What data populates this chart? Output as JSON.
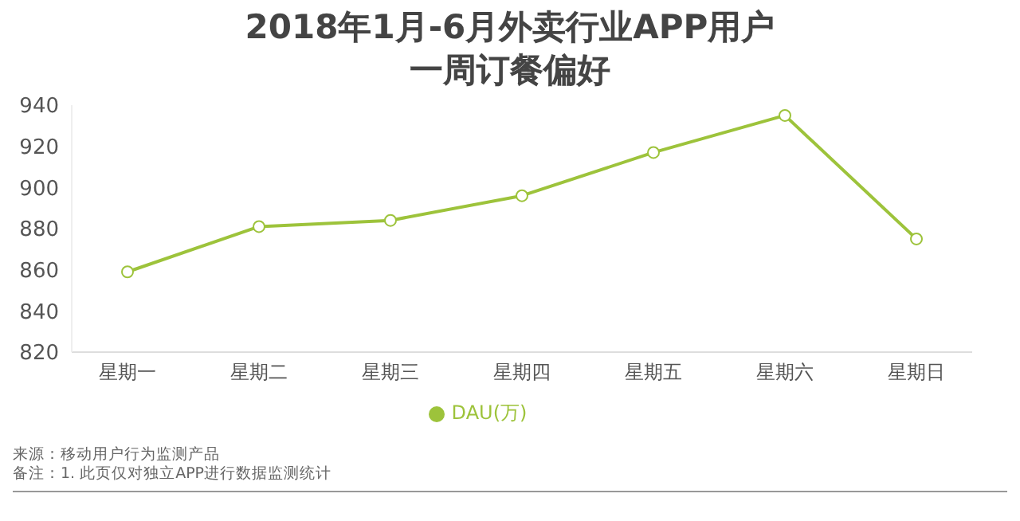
{
  "chart_data": {
    "type": "line",
    "title": "2018年1月-6月外卖行业APP用户一周订餐偏好",
    "categories": [
      "星期一",
      "星期二",
      "星期三",
      "星期四",
      "星期五",
      "星期六",
      "星期日"
    ],
    "series": [
      {
        "name": "DAU(万)",
        "color": "#9dc33b",
        "values": [
          859,
          881,
          884,
          896,
          917,
          935,
          875
        ]
      }
    ],
    "ylim": [
      820,
      940
    ],
    "yticks": [
      820,
      840,
      860,
      880,
      900,
      920,
      940
    ],
    "grid": false,
    "legend": "bottom",
    "marker": "circle",
    "line_style": "solid",
    "annotations": [
      "来源：移动用户行为监测产品",
      "备注：1. 此页仅对独立APP进行数据监测统计"
    ]
  }
}
